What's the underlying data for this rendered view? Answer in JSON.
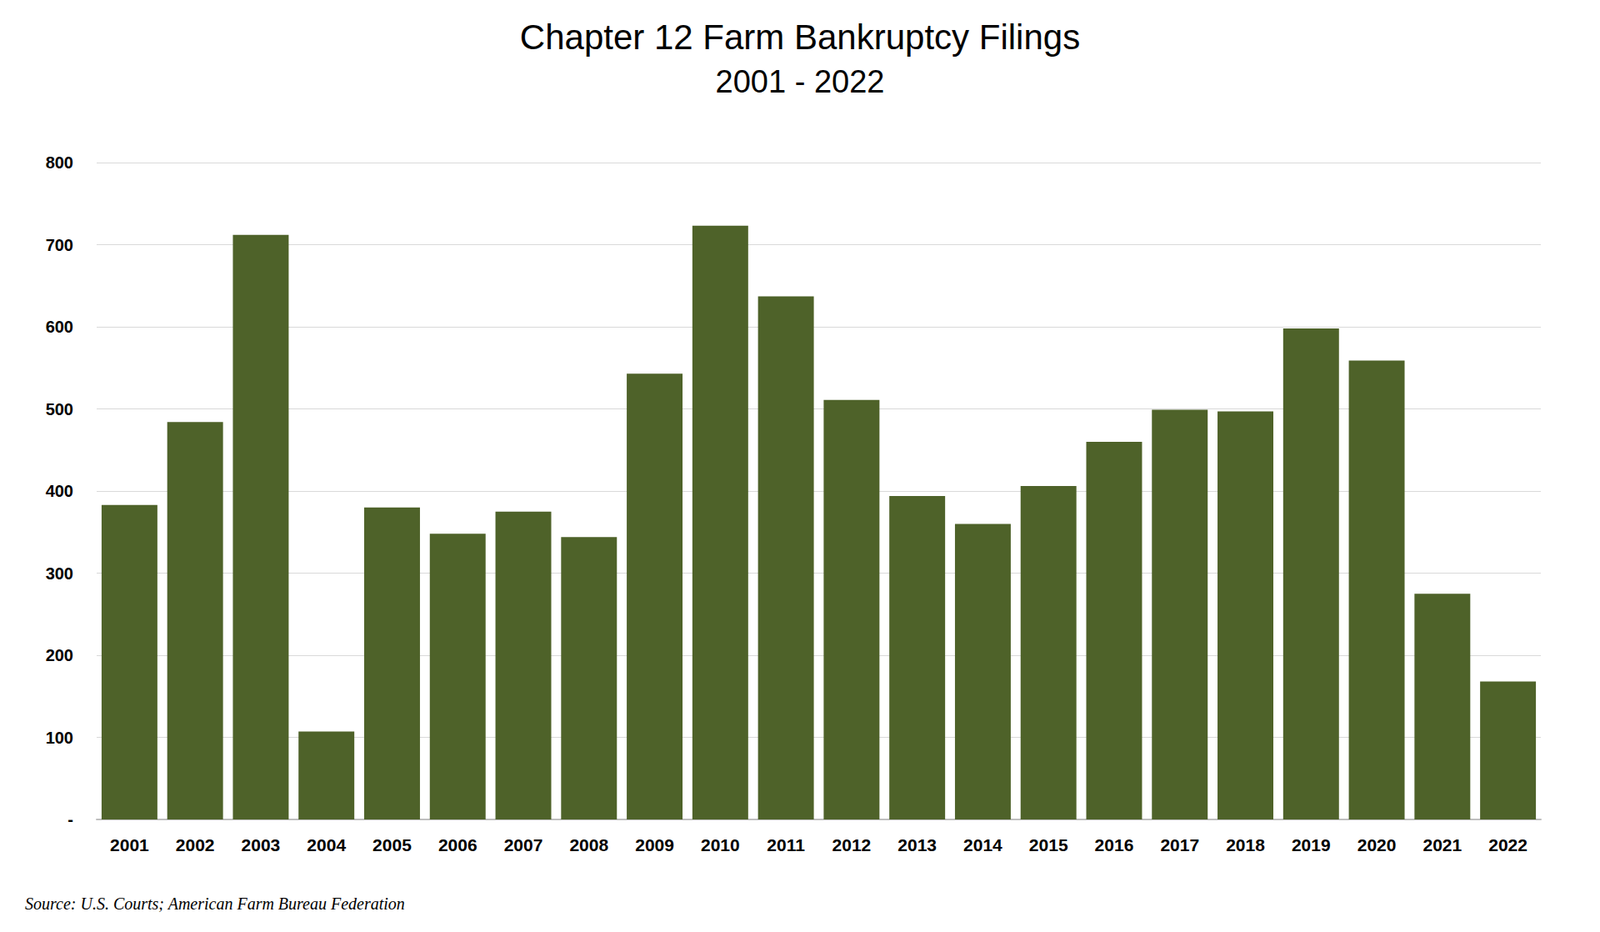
{
  "chart_data": {
    "type": "bar",
    "title": "Chapter 12 Farm Bankruptcy Filings",
    "subtitle": "2001 - 2022",
    "categories": [
      "2001",
      "2002",
      "2003",
      "2004",
      "2005",
      "2006",
      "2007",
      "2008",
      "2009",
      "2010",
      "2011",
      "2012",
      "2013",
      "2014",
      "2015",
      "2016",
      "2017",
      "2018",
      "2019",
      "2020",
      "2021",
      "2022"
    ],
    "values": [
      383,
      484,
      712,
      107,
      380,
      348,
      375,
      344,
      543,
      723,
      637,
      511,
      394,
      360,
      406,
      460,
      499,
      497,
      598,
      559,
      275,
      168
    ],
    "color": "#4e6229",
    "ylim": [
      0,
      800
    ],
    "yticks": [
      {
        "value": 0,
        "label": "-"
      },
      100,
      200,
      300,
      400,
      500,
      600,
      700,
      800
    ],
    "grid": true,
    "annotations": [
      "Source: U.S. Courts; American Farm Bureau Federation"
    ]
  }
}
